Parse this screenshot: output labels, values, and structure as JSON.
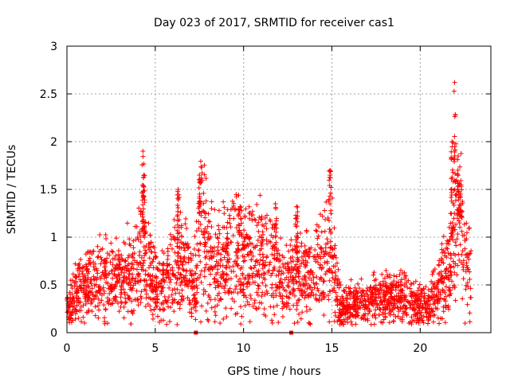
{
  "chart_data": {
    "type": "scatter",
    "title": "Day 023 of 2017, SRMTID for receiver cas1",
    "xlabel": "GPS time / hours",
    "ylabel": "SRMTID / TECUs",
    "xlim": [
      0,
      24
    ],
    "ylim": [
      0,
      3
    ],
    "x_ticks": [
      0,
      5,
      10,
      15,
      20
    ],
    "x_tick_labels": [
      "0",
      "5",
      "10",
      "15",
      "20"
    ],
    "y_ticks": [
      0,
      0.5,
      1,
      1.5,
      2,
      2.5,
      3
    ],
    "y_tick_labels": [
      "0",
      "0.5",
      "1",
      "1.5",
      "2",
      "2.5",
      "3"
    ],
    "grid": true,
    "marker": "+",
    "series_color": "#ff0000",
    "data_end_hour": 22.9,
    "zero_markers_x": [
      7.3,
      12.7
    ],
    "envelope": [
      [
        0.0,
        0.22
      ],
      [
        0.5,
        0.4
      ],
      [
        1.0,
        0.45
      ],
      [
        1.5,
        0.5
      ],
      [
        2.0,
        0.55
      ],
      [
        2.5,
        0.5
      ],
      [
        3.0,
        0.55
      ],
      [
        3.5,
        0.55
      ],
      [
        4.0,
        0.65
      ],
      [
        4.3,
        0.9
      ],
      [
        4.6,
        0.7
      ],
      [
        5.0,
        0.5
      ],
      [
        5.5,
        0.45
      ],
      [
        6.0,
        0.6
      ],
      [
        6.5,
        0.75
      ],
      [
        7.0,
        0.55
      ],
      [
        7.3,
        0.55
      ],
      [
        7.6,
        1.15
      ],
      [
        8.0,
        0.75
      ],
      [
        8.5,
        0.65
      ],
      [
        9.0,
        0.8
      ],
      [
        9.5,
        0.85
      ],
      [
        10.0,
        0.75
      ],
      [
        10.5,
        0.8
      ],
      [
        11.0,
        0.75
      ],
      [
        11.5,
        0.65
      ],
      [
        12.0,
        0.55
      ],
      [
        12.5,
        0.5
      ],
      [
        13.0,
        0.6
      ],
      [
        13.5,
        0.6
      ],
      [
        14.0,
        0.55
      ],
      [
        14.5,
        0.7
      ],
      [
        15.0,
        0.8
      ],
      [
        15.3,
        0.4
      ],
      [
        15.6,
        0.25
      ],
      [
        16.0,
        0.3
      ],
      [
        16.5,
        0.3
      ],
      [
        17.0,
        0.3
      ],
      [
        17.5,
        0.35
      ],
      [
        18.0,
        0.35
      ],
      [
        18.5,
        0.35
      ],
      [
        19.0,
        0.35
      ],
      [
        19.5,
        0.3
      ],
      [
        20.0,
        0.28
      ],
      [
        20.5,
        0.25
      ],
      [
        21.0,
        0.45
      ],
      [
        21.5,
        0.6
      ],
      [
        22.0,
        1.1
      ],
      [
        22.3,
        1.0
      ],
      [
        22.6,
        0.6
      ],
      [
        22.9,
        0.6
      ]
    ],
    "spikes": [
      {
        "x": 4.3,
        "y": 1.9,
        "w": 0.12
      },
      {
        "x": 4.35,
        "y": 1.65,
        "w": 0.1
      },
      {
        "x": 6.3,
        "y": 1.5,
        "w": 0.15
      },
      {
        "x": 7.5,
        "y": 1.65,
        "w": 0.1
      },
      {
        "x": 9.8,
        "y": 1.32,
        "w": 0.2
      },
      {
        "x": 11.8,
        "y": 1.35,
        "w": 0.15
      },
      {
        "x": 13.0,
        "y": 1.32,
        "w": 0.15
      },
      {
        "x": 14.9,
        "y": 1.7,
        "w": 0.15
      },
      {
        "x": 21.8,
        "y": 2.0,
        "w": 0.12
      },
      {
        "x": 21.95,
        "y": 2.62,
        "w": 0.1
      },
      {
        "x": 22.15,
        "y": 1.85,
        "w": 0.1
      },
      {
        "x": 22.3,
        "y": 1.55,
        "w": 0.12
      }
    ]
  }
}
